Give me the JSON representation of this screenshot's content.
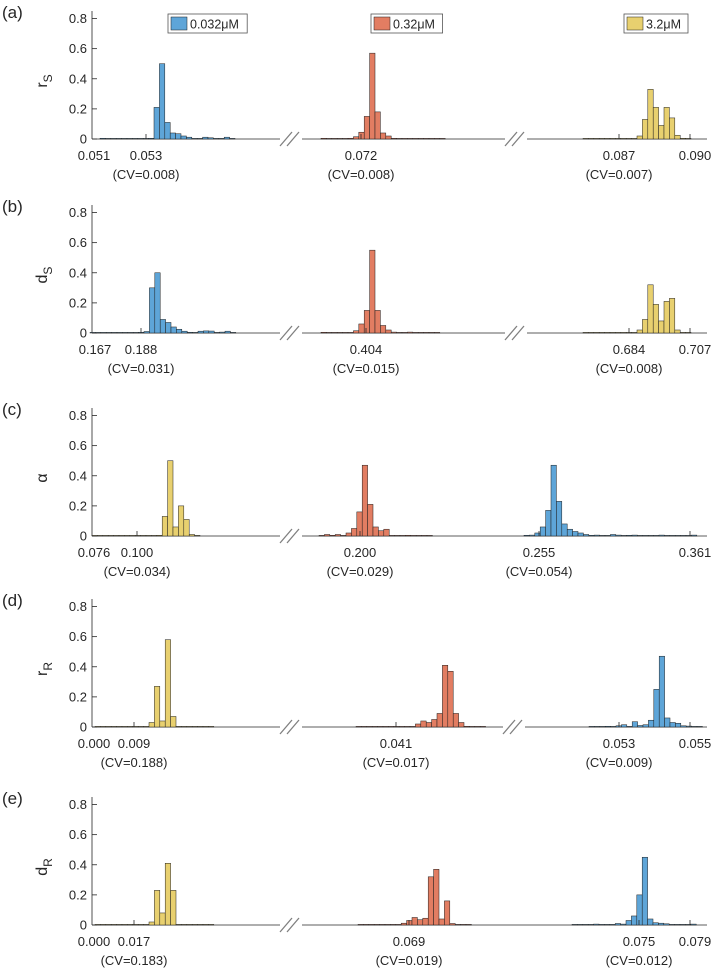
{
  "colors": {
    "c0.032": "#5EA5D8",
    "c0.32": "#E27D62",
    "c3.2": "#E8D06F",
    "axis": "#262626",
    "break": "#7f7f7f"
  },
  "legend": [
    {
      "key": "c0.032",
      "label": "0.032μM"
    },
    {
      "key": "c0.32",
      "label": "0.32μM"
    },
    {
      "key": "c3.2",
      "label": "3.2μM"
    }
  ],
  "chart_data": [
    {
      "type": "histogram",
      "panel": "(a)",
      "ylabel_main": "r",
      "ylabel_sub": "S",
      "ylim": [
        0,
        0.85
      ],
      "yticks": [
        "0",
        "0.2",
        "0.4",
        "0.6",
        "0.8"
      ],
      "segments": [
        {
          "series": "c0.032",
          "tick_left": "0.051",
          "tick_center": "0.053",
          "cv": "(CV=0.008)",
          "bars": [
            0.005,
            0,
            0,
            0,
            0,
            0,
            0,
            0,
            0,
            0.005,
            0.21,
            0.5,
            0.11,
            0.04,
            0.035,
            0.02,
            0.012,
            0,
            0.004,
            0.012,
            0.008,
            0.004,
            0,
            0.012,
            0.004
          ]
        },
        {
          "series": "c0.32",
          "tick_center": "0.072",
          "cv": "(CV=0.008)",
          "bars": [
            0.005,
            0,
            0.003,
            0,
            0,
            0.005,
            0.015,
            0.045,
            0.15,
            0.57,
            0.18,
            0.04,
            0.02,
            0.005,
            0.003,
            0,
            0.003,
            0.002,
            0,
            0,
            0.002,
            0,
            0.002
          ]
        },
        {
          "series": "c3.2",
          "tick_center": "0.087",
          "tick_right": "0.090",
          "cv": "(CV=0.007)",
          "bars": [
            0,
            0,
            0,
            0,
            0,
            0,
            0.003,
            0,
            0.002,
            0.004,
            0.02,
            0.13,
            0.33,
            0.21,
            0.09,
            0.21,
            0.14,
            0.025,
            0.005,
            0.002
          ]
        }
      ]
    },
    {
      "type": "histogram",
      "panel": "(b)",
      "ylabel_main": "d",
      "ylabel_sub": "S",
      "ylim": [
        0,
        0.85
      ],
      "yticks": [
        "0",
        "0.2",
        "0.4",
        "0.6",
        "0.8"
      ],
      "segments": [
        {
          "series": "c0.032",
          "tick_left": "0.167",
          "tick_center": "0.188",
          "cv": "(CV=0.031)",
          "bars": [
            0.004,
            0,
            0,
            0,
            0,
            0,
            0,
            0,
            0,
            0.005,
            0.01,
            0.3,
            0.4,
            0.09,
            0.07,
            0.04,
            0.025,
            0.012,
            0.005,
            0,
            0.012,
            0.014,
            0.013,
            0,
            0.006,
            0.012,
            0.004
          ]
        },
        {
          "series": "c0.32",
          "tick_center": "0.404",
          "cv": "(CV=0.015)",
          "bars": [
            0.005,
            0,
            0.003,
            0,
            0,
            0.004,
            0.015,
            0.06,
            0.15,
            0.55,
            0.15,
            0.05,
            0.02,
            0.006,
            0.003,
            0,
            0.006,
            0.002,
            0,
            0.003,
            0,
            0.003
          ]
        },
        {
          "series": "c3.2",
          "tick_center": "0.684",
          "tick_right": "0.707",
          "cv": "(CV=0.008)",
          "bars": [
            0,
            0.003,
            0,
            0,
            0,
            0,
            0.003,
            0,
            0.002,
            0.003,
            0.02,
            0.09,
            0.32,
            0.19,
            0.08,
            0.21,
            0.23,
            0.02,
            0.004,
            0.002
          ]
        }
      ]
    },
    {
      "type": "histogram",
      "panel": "(c)",
      "ylabel_main": "α",
      "ylabel_sub": "",
      "ylim": [
        0,
        0.85
      ],
      "yticks": [
        "0",
        "0.2",
        "0.4",
        "0.6",
        "0.8"
      ],
      "segments": [
        {
          "series": "c3.2",
          "tick_left": "0.076",
          "tick_center": "0.100",
          "cv": "(CV=0.034)",
          "bars": [
            0,
            0,
            0,
            0,
            0,
            0,
            0,
            0,
            0,
            0,
            0,
            0,
            0.005,
            0.13,
            0.5,
            0.06,
            0.2,
            0.11,
            0.01,
            0
          ]
        },
        {
          "series": "c0.32",
          "tick_center": "0.200",
          "cv": "(CV=0.029)",
          "bars": [
            0,
            0.01,
            0.005,
            0.01,
            0.003,
            0.02,
            0.05,
            0.16,
            0.47,
            0.21,
            0.06,
            0.035,
            0.045,
            0.003,
            0,
            0,
            0.005,
            0,
            0.003,
            0,
            0.002
          ]
        },
        {
          "series": "c0.032",
          "tick_center": "0.255",
          "tick_right": "0.361",
          "cv": "(CV=0.054)",
          "bars": [
            0.005,
            0.006,
            0.02,
            0.06,
            0.17,
            0.47,
            0.23,
            0.08,
            0.045,
            0.03,
            0.02,
            0.01,
            0.005,
            0.006,
            0,
            0,
            0.01,
            0.006,
            0.004,
            0.005,
            0.006,
            0.003,
            0,
            0,
            0.004,
            0.006,
            0.004,
            0,
            0.004,
            0,
            0,
            0.006
          ]
        }
      ]
    },
    {
      "type": "histogram",
      "panel": "(d)",
      "ylabel_main": "r",
      "ylabel_sub": "R",
      "ylim": [
        0,
        0.85
      ],
      "yticks": [
        "0",
        "0.2",
        "0.4",
        "0.6",
        "0.8"
      ],
      "segments": [
        {
          "series": "c3.2",
          "tick_left": "0.000",
          "tick_center": "0.009",
          "cv": "(CV=0.188)",
          "bars": [
            0.004,
            0,
            0,
            0,
            0,
            0,
            0,
            0,
            0,
            0,
            0.03,
            0.27,
            0.04,
            0.58,
            0.07,
            0,
            0,
            0,
            0,
            0,
            0,
            0.004
          ]
        },
        {
          "series": "c0.32",
          "tick_center": "0.041",
          "cv": "(CV=0.017)",
          "bars": [
            0,
            0,
            0,
            0,
            0,
            0,
            0.002,
            0,
            0.003,
            0,
            0.003,
            0.02,
            0.04,
            0.03,
            0.05,
            0.09,
            0.41,
            0.37,
            0.09,
            0.03,
            0.005,
            0.003,
            0,
            0.003
          ]
        },
        {
          "series": "c0.032",
          "tick_center": "0.053",
          "tick_right": "0.055",
          "cv": "(CV=0.009)",
          "bars": [
            0.004,
            0,
            0.003,
            0.005,
            0.003,
            0.008,
            0.015,
            0.004,
            0.035,
            0.01,
            0.015,
            0.045,
            0.25,
            0.47,
            0.06,
            0.03,
            0.025,
            0.008,
            0.006,
            0.004,
            0.003
          ]
        }
      ]
    },
    {
      "type": "histogram",
      "panel": "(e)",
      "ylabel_main": "d",
      "ylabel_sub": "R",
      "ylim": [
        0,
        0.85
      ],
      "yticks": [
        "0",
        "0.2",
        "0.4",
        "0.6",
        "0.8"
      ],
      "segments": [
        {
          "series": "c3.2",
          "tick_left": "0.000",
          "tick_center": "0.017",
          "cv": "(CV=0.183)",
          "bars": [
            0,
            0,
            0,
            0,
            0,
            0,
            0,
            0,
            0,
            0,
            0.02,
            0.23,
            0.08,
            0.41,
            0.23,
            0.003,
            0,
            0,
            0,
            0,
            0,
            0
          ]
        },
        {
          "series": "c0.32",
          "tick_center": "0.069",
          "cv": "(CV=0.019)",
          "bars": [
            0,
            0,
            0,
            0,
            0,
            0.002,
            0,
            0.004,
            0.012,
            0.03,
            0.05,
            0.035,
            0.045,
            0.32,
            0.37,
            0.04,
            0.16,
            0.01,
            0.004,
            0,
            0.003
          ]
        },
        {
          "series": "c0.032",
          "tick_center": "0.075",
          "tick_right": "0.079",
          "cv": "(CV=0.012)",
          "bars": [
            0.003,
            0,
            0,
            0.004,
            0.006,
            0.004,
            0.003,
            0.004,
            0.01,
            0.006,
            0.03,
            0.06,
            0.2,
            0.45,
            0.04,
            0.015,
            0.012,
            0.008,
            0.004,
            0,
            0.004,
            0,
            0.006
          ]
        }
      ]
    }
  ]
}
